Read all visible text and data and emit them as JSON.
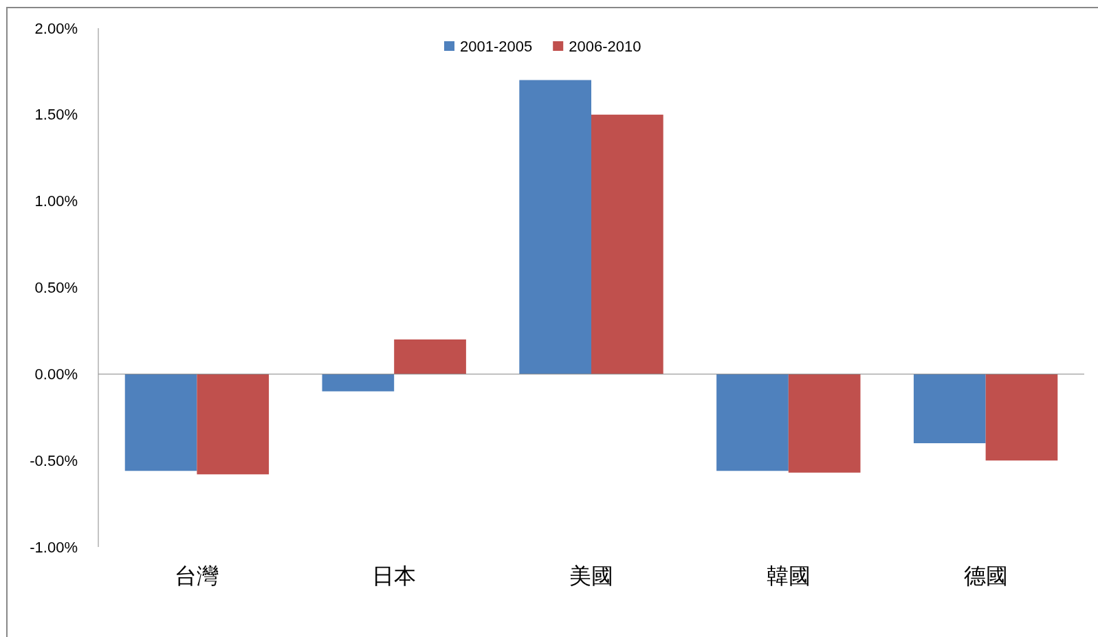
{
  "chart_data": {
    "type": "bar",
    "categories": [
      "台灣",
      "日本",
      "美國",
      "韓國",
      "德國"
    ],
    "series": [
      {
        "name": "2001-2005",
        "color": "#4f81bd",
        "values": [
          -0.56,
          -0.1,
          1.7,
          -0.56,
          -0.4
        ]
      },
      {
        "name": "2006-2010",
        "color": "#c0504d",
        "values": [
          -0.58,
          0.2,
          1.5,
          -0.57,
          -0.5
        ]
      }
    ],
    "ylim": [
      -1,
      2
    ],
    "yticks": [
      {
        "value": -1,
        "label": "-1.00%"
      },
      {
        "value": -0.5,
        "label": "-0.50%"
      },
      {
        "value": 0,
        "label": "0.00%"
      },
      {
        "value": 0.5,
        "label": "0.50%"
      },
      {
        "value": 1,
        "label": "1.00%"
      },
      {
        "value": 1.5,
        "label": "1.50%"
      },
      {
        "value": 2,
        "label": "2.00%"
      }
    ],
    "legend": "top"
  }
}
